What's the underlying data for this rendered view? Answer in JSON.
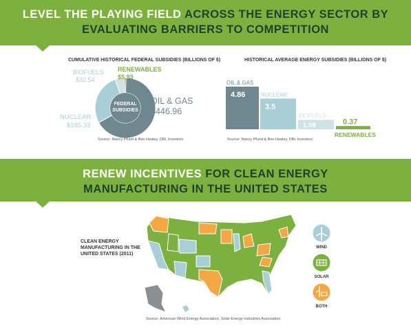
{
  "banner_top": {
    "part1": "LEVEL THE PLAYING FIELD",
    "part2": " ACROSS THE ENERGY SECTOR BY",
    "line2": "EVALUATING BARRIERS TO COMPETITION"
  },
  "banner_mid": {
    "part1": "RENEW INCENTIVES",
    "part2": " FOR CLEAN ENERGY",
    "line2": "MANUFACTURING IN THE UNITED STATES"
  },
  "colors": {
    "green": "#7db13f",
    "dark_slate": "#6f8890",
    "light_blue": "#a9cfd6",
    "pale_blue": "#cfe3e7",
    "orange": "#f4a742",
    "gray": "#8a8f94"
  },
  "chart_data": [
    {
      "type": "pie",
      "title": "CUMULATIVE HISTORICAL FEDERAL SUBSIDIES (BILLIONS OF $)",
      "center_label": [
        "FEDERAL",
        "SUBSIDIES"
      ],
      "categories": [
        "OIL & GAS",
        "NUCLEAR",
        "BIOFUELS",
        "RENEWABLES"
      ],
      "values": [
        446.96,
        185.33,
        32.54,
        5.93
      ],
      "value_labels": [
        "$446.96",
        "$185.33",
        "$32.54",
        "$5.93"
      ],
      "colors": [
        "#6f8890",
        "#a9cfd6",
        "#cfe3e7",
        "#7db13f"
      ],
      "source": "Source: Nancy Pfund & Ben Healey, DBL Investors"
    },
    {
      "type": "bar",
      "title": "HISTORICAL AVERAGE ENERGY SUBSIDIES (BILLIONS OF $)",
      "categories": [
        "OIL & GAS",
        "NUCLEAR",
        "BIOFUELS",
        "RENEWABLES"
      ],
      "values": [
        4.86,
        3.5,
        1.08,
        0.37
      ],
      "value_labels": [
        "4.86",
        "3.5",
        "1.08",
        "0.37"
      ],
      "colors": [
        "#6f8890",
        "#a9cfd6",
        "#cfe3e7",
        "#7db13f"
      ],
      "source": "Source: Nancy Pfund & Ben Healey, DBL Investors"
    }
  ],
  "map": {
    "title_lines": [
      "CLEAN ENERGY",
      "MANUFACTURING IN THE",
      "UNITED STATES (2011)"
    ],
    "legend": [
      {
        "label": "WIND",
        "icon": "wind-turbine-icon",
        "color": "#a9cfd6"
      },
      {
        "label": "SOLAR",
        "icon": "solar-panel-icon",
        "color": "#7db13f"
      },
      {
        "label": "BOTH",
        "icon": "wind-and-solar-icon",
        "color": "#f4a742"
      }
    ],
    "source": "Source: American Wind Energy Association, Solar Energy Industries Association"
  }
}
